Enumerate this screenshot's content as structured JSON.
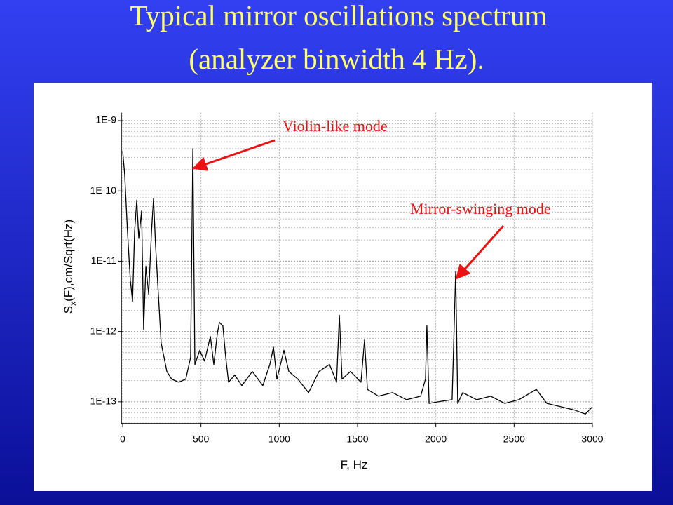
{
  "chart_data": {
    "type": "line",
    "title": [
      "Typical mirror oscillations spectrum",
      "(analyzer binwidth 4 Hz)."
    ],
    "xlabel": "F, Hz",
    "ylabel": [
      "S",
      "x",
      "(F),cm/Sqrt(Hz)"
    ],
    "ylog": true,
    "grid": true,
    "minor_grid": true,
    "xlim": [
      0,
      3000
    ],
    "ylim": [
      5e-14,
      1.3e-09
    ],
    "xticks": [
      0,
      500,
      1000,
      1500,
      2000,
      2500,
      3000
    ],
    "yticks": [
      {
        "value": 1e-13,
        "label": "1E-13"
      },
      {
        "value": 1e-12,
        "label": "1E-12"
      },
      {
        "value": 1e-11,
        "label": "1E-11"
      },
      {
        "value": 1e-10,
        "label": "1E-10"
      },
      {
        "value": 1e-09,
        "label": "1E-9"
      }
    ],
    "annotations": [
      "Violin-like mode",
      "Mirror-swinging mode"
    ],
    "series": [
      {
        "color": "#000000",
        "x": [
          0,
          13,
          31,
          49,
          63,
          76,
          90,
          103,
          121,
          134,
          148,
          166,
          184,
          197,
          210,
          228,
          246,
          264,
          282,
          313,
          358,
          403,
          434,
          448,
          461,
          492,
          523,
          560,
          582,
          605,
          618,
          640,
          658,
          676,
          716,
          761,
          828,
          895,
          940,
          963,
          985,
          1030,
          1061,
          1119,
          1187,
          1254,
          1321,
          1366,
          1384,
          1401,
          1455,
          1522,
          1545,
          1563,
          1634,
          1724,
          1813,
          1903,
          1934,
          1943,
          1957,
          2037,
          2104,
          2127,
          2140,
          2172,
          2261,
          2351,
          2440,
          2530,
          2642,
          2709,
          2799,
          2888,
          2955,
          3000
        ],
        "values": [
          3.7e-10,
          1.7e-10,
          2.6e-11,
          5.4e-12,
          2.7e-12,
          2.6e-11,
          7.4e-11,
          2.1e-11,
          5.2e-11,
          1.07e-12,
          8.5e-12,
          3.4e-12,
          2.6e-11,
          7.8e-11,
          1.7e-11,
          3.4e-12,
          6.8e-13,
          4.3e-13,
          2.7e-13,
          2.1e-13,
          1.9e-13,
          2.1e-13,
          4.3e-13,
          4e-10,
          3.4e-13,
          5.4e-13,
          3.8e-13,
          8.5e-13,
          3.4e-13,
          9.5e-13,
          1.35e-12,
          1.2e-12,
          4.3e-13,
          1.9e-13,
          2.4e-13,
          1.7e-13,
          2.7e-13,
          1.7e-13,
          3.4e-13,
          6e-13,
          2.1e-13,
          5.4e-13,
          2.7e-13,
          2.1e-13,
          1.35e-13,
          2.7e-13,
          3.4e-13,
          1.9e-13,
          1.7e-12,
          2.1e-13,
          2.7e-13,
          1.9e-13,
          7.6e-13,
          1.5e-13,
          1.2e-13,
          1.35e-13,
          1.07e-13,
          1.2e-13,
          2.1e-13,
          1.2e-12,
          9.5e-14,
          1.02e-13,
          1.07e-13,
          7.1e-12,
          9.5e-14,
          1.35e-13,
          1.07e-13,
          1.2e-13,
          9.5e-14,
          1.07e-13,
          1.5e-13,
          9.5e-14,
          8.5e-14,
          7.6e-14,
          6.7e-14,
          8.5e-14
        ]
      }
    ]
  }
}
